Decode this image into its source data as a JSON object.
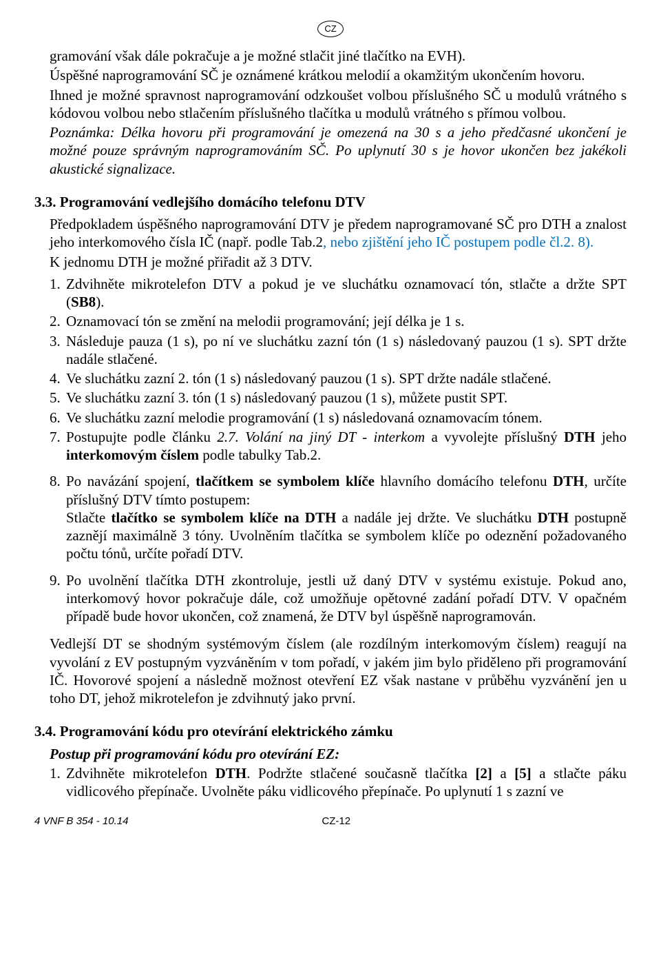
{
  "langBadge": "CZ",
  "intro": {
    "p1": "gramování však dále pokračuje a je možné stlačit jiné tlačítko na EVH).",
    "p2": "Úspěšné naprogramování SČ je oznámené krátkou melodií a okamžitým ukončením hovoru.",
    "p3": "Ihned je možné spravnost naprogramování odzkoušet volbou příslušného SČ u modulů vrátného s kódovou volbou nebo stlačením příslušného tlačítka u modulů vrátného s přímou volbou.",
    "note": "Poznámka: Délka hovoru při programování je omezená na 30 s a jeho předčasné ukončení je možné pouze správným naprogramováním SČ. Po uplynutí 30 s je hovor ukončen bez jakékoli akustické signalizace."
  },
  "s33": {
    "title": "3.3. Programování vedlejšího domácího telefonu DTV",
    "lead_part1": "Předpokladem úspěšného naprogramování DTV je předem naprogramované SČ pro DTH a znalost jeho interkomového čísla IČ (např. podle Tab.2",
    "lead_blue": ", nebo zjištění jeho IČ postupem podle čl.2. 8).",
    "lead_part2": "K jednomu DTH je možné přiřadit až 3 DTV.",
    "items": [
      {
        "n": "1.",
        "t": "Zdvihněte mikrotelefon DTV a pokud je ve sluchátku oznamovací tón, stlačte a držte SPT (<b>SB8</b>)."
      },
      {
        "n": "2.",
        "t": "Oznamovací tón se změní na melodii programování; její délka je 1 s."
      },
      {
        "n": "3.",
        "t": "Následuje pauza (1 s), po ní ve sluchátku zazní tón (1 s) následovaný pauzou (1 s). SPT držte nadále stlačené."
      },
      {
        "n": "4.",
        "t": "Ve sluchátku zazní 2. tón (1 s) následovaný pauzou (1 s). SPT držte nadále stlačené."
      },
      {
        "n": "5.",
        "t": "Ve sluchátku zazní 3. tón (1 s) následovaný pauzou (1 s), můžete pustit SPT."
      },
      {
        "n": "6.",
        "t": "Ve sluchátku zazní melodie programování (1 s) následovaná oznamovacím tónem."
      },
      {
        "n": "7.",
        "t": "Postupujte podle článku <i>2.7. Volání na jiný DT - interkom</i> a vyvolejte příslušný <b>DTH</b> jeho <b>interkomovým číslem</b> podle tabulky Tab.2."
      },
      {
        "n": "8.",
        "t": "Po navázání spojení, <b>tlačítkem se symbolem klíče</b> hlavního domácího telefonu <b>DTH</b>, určíte příslušný DTV tímto postupem:<br>Stlačte <b>tlačítko se symbolem klíče na DTH</b> a nadále jej držte. Ve sluchátku <b>DTH</b> postupně zaznějí maximálně 3 tóny. Uvolněním tlačítka se symbolem klíče po odeznění požadovaného počtu tónů, určíte pořadí DTV."
      },
      {
        "n": "9.",
        "t": "Po uvolnění tlačítka DTH zkontroluje, jestli už daný DTV v systému existuje. Pokud ano, interkomový hovor pokračuje dále, což umožňuje opětovné zadání pořadí DTV. V opačném případě bude hovor ukončen, což znamená, že DTV byl úspěšně naprogramován."
      }
    ],
    "tail": "Vedlejší DT se shodným systémovým číslem (ale rozdílným interkomovým číslem) reagují na vyvolání z EV postupným vyzváněním v tom pořadí, v jakém jim bylo přiděleno při programování IČ. Hovorové spojení a následně možnost otevření EZ však nastane v průběhu vyzvánění jen u toho DT, jehož mikrotelefon je zdvihnutý jako první."
  },
  "s34": {
    "title": "3.4. Programování kódu pro otevírání elektrického zámku",
    "subtitle": "Postup při programování kódu pro otevírání EZ:",
    "item1_n": "1.",
    "item1_t": "Zdvihněte mikrotelefon <b>DTH</b>. Podržte stlačené současně tlačítka <b>[2]</b> a <b>[5]</b> a stlačte páku vidlicového přepínače. Uvolněte páku vidlicového přepínače. Po uplynutí 1 s zazní ve"
  },
  "footer": {
    "left": "4 VNF B 354  -  10.14",
    "center": "CZ-12"
  },
  "colors": {
    "text": "#000000",
    "link_blue": "#0070c0",
    "background": "#ffffff"
  },
  "fonts": {
    "body_family": "Times New Roman",
    "body_size_pt": 16,
    "footer_family": "Arial",
    "footer_size_pt": 11
  }
}
